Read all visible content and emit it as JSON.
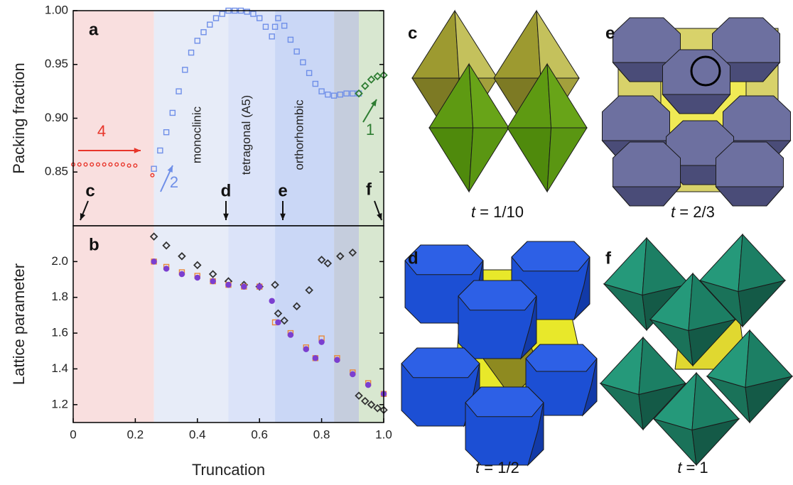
{
  "chart_data": [
    {
      "type": "scatter",
      "panel_label": "a",
      "ylabel": "Packing fraction",
      "xlim": [
        0,
        1
      ],
      "ylim": [
        0.8,
        1.0
      ],
      "yticks": [
        0.85,
        {
          "value": 0.9,
          "label": "0.90"
        },
        0.95,
        {
          "value": 1,
          "label": "1.00"
        }
      ],
      "regions": [
        {
          "from": 0,
          "to": 0.26,
          "color": "#f9dfdf"
        },
        {
          "from": 0.26,
          "to": 0.5,
          "color": "#e7ecf8"
        },
        {
          "from": 0.5,
          "to": 0.65,
          "color": "#dbe3f9"
        },
        {
          "from": 0.65,
          "to": 0.84,
          "color": "#cad7f6"
        },
        {
          "from": 0.84,
          "to": 0.92,
          "color": "#c5cddd"
        },
        {
          "from": 0.92,
          "to": 1,
          "color": "#d8e7d0"
        }
      ],
      "phase_labels": [
        "monoclinic",
        "tetragonal (A5)",
        "orthorhombic"
      ],
      "annotations": [
        {
          "text": "4",
          "color": "#e8352a"
        },
        {
          "text": "2",
          "color": "#6f8fe8"
        },
        {
          "text": "1",
          "color": "#2e7d32"
        },
        {
          "text": "c",
          "color": "#111111"
        },
        {
          "text": "d",
          "color": "#111111"
        },
        {
          "text": "e",
          "color": "#111111"
        },
        {
          "text": "f",
          "color": "#111111"
        }
      ],
      "series": [
        {
          "color": "#e8352a",
          "marker": "circle",
          "x": [
            0,
            0.02,
            0.04,
            0.06,
            0.08,
            0.1,
            0.12,
            0.14,
            0.16,
            0.18,
            0.2,
            0.255
          ],
          "values": [
            0.857,
            0.857,
            0.857,
            0.857,
            0.857,
            0.857,
            0.857,
            0.857,
            0.857,
            0.856,
            0.856,
            0.847
          ]
        },
        {
          "color": "#6f8fe8",
          "marker": "square",
          "x": [
            0.26,
            0.28,
            0.3,
            0.32,
            0.34,
            0.36,
            0.38,
            0.4,
            0.42,
            0.44,
            0.46,
            0.48,
            0.5,
            0.52,
            0.54,
            0.56,
            0.58,
            0.6,
            0.62,
            0.64,
            0.65,
            0.66,
            0.68,
            0.7,
            0.72,
            0.74,
            0.76,
            0.78,
            0.8,
            0.82,
            0.84,
            0.86,
            0.88,
            0.9,
            0.92
          ],
          "values": [
            0.853,
            0.87,
            0.887,
            0.905,
            0.925,
            0.945,
            0.961,
            0.972,
            0.98,
            0.987,
            0.993,
            0.997,
            1.0,
            1.0,
            1.0,
            0.999,
            0.997,
            0.993,
            0.985,
            0.976,
            0.985,
            0.993,
            0.986,
            0.973,
            0.962,
            0.952,
            0.942,
            0.932,
            0.925,
            0.922,
            0.921,
            0.922,
            0.923,
            0.923,
            0.923
          ]
        },
        {
          "color": "#2e7d32",
          "marker": "diamond",
          "x": [
            0.92,
            0.94,
            0.96,
            0.98,
            1.0
          ],
          "values": [
            0.923,
            0.93,
            0.936,
            0.939,
            0.94
          ]
        }
      ]
    },
    {
      "type": "scatter",
      "panel_label": "b",
      "ylabel": "Lattice parameter",
      "xlabel": "Truncation",
      "xlim": [
        0,
        1
      ],
      "ylim": [
        1.1,
        2.2
      ],
      "xticks": [
        0,
        0.2,
        0.4,
        0.6,
        0.8,
        {
          "value": 1,
          "label": "1.0"
        }
      ],
      "yticks": [
        1.2,
        1.4,
        1.6,
        1.8,
        {
          "value": 2,
          "label": "2.0"
        }
      ],
      "regions": [
        {
          "from": 0,
          "to": 0.26,
          "color": "#f9dfdf"
        },
        {
          "from": 0.26,
          "to": 0.5,
          "color": "#e7ecf8"
        },
        {
          "from": 0.5,
          "to": 0.65,
          "color": "#dbe3f9"
        },
        {
          "from": 0.65,
          "to": 0.84,
          "color": "#cad7f6"
        },
        {
          "from": 0.84,
          "to": 0.92,
          "color": "#c5cddd"
        },
        {
          "from": 0.92,
          "to": 1,
          "color": "#d8e7d0"
        }
      ],
      "series": [
        {
          "color": "#333333",
          "marker": "diamond",
          "x": [
            0.26,
            0.3,
            0.35,
            0.4,
            0.45,
            0.5,
            0.55,
            0.6,
            0.65,
            0.66,
            0.68,
            0.72,
            0.76,
            0.8,
            0.82,
            0.86,
            0.9,
            0.92,
            0.94,
            0.96,
            0.98,
            1.0
          ],
          "values": [
            2.14,
            2.09,
            2.03,
            1.98,
            1.93,
            1.89,
            1.87,
            1.86,
            1.87,
            1.71,
            1.67,
            1.75,
            1.84,
            2.01,
            1.99,
            2.03,
            2.05,
            1.25,
            1.22,
            1.2,
            1.18,
            1.17
          ]
        },
        {
          "color": "#e8883a",
          "marker": "square",
          "x": [
            0.26,
            0.3,
            0.35,
            0.4,
            0.45,
            0.5,
            0.55,
            0.6,
            0.65,
            0.7,
            0.75,
            0.78,
            0.8,
            0.85,
            0.9,
            0.95,
            1.0
          ],
          "values": [
            2.0,
            1.97,
            1.94,
            1.92,
            1.89,
            1.87,
            1.86,
            1.86,
            1.66,
            1.6,
            1.52,
            1.46,
            1.57,
            1.46,
            1.38,
            1.32,
            1.26
          ]
        },
        {
          "color": "#7b3fd0",
          "marker": "circle-filled",
          "x": [
            0.26,
            0.3,
            0.35,
            0.4,
            0.45,
            0.5,
            0.55,
            0.6,
            0.64,
            0.66,
            0.7,
            0.75,
            0.78,
            0.8,
            0.85,
            0.9,
            0.95,
            1.0
          ],
          "values": [
            2.0,
            1.96,
            1.93,
            1.91,
            1.89,
            1.87,
            1.86,
            1.86,
            1.78,
            1.66,
            1.59,
            1.51,
            1.46,
            1.55,
            1.45,
            1.37,
            1.31,
            1.26
          ]
        }
      ]
    }
  ],
  "images": [
    {
      "label": "c",
      "variable": "t",
      "caption": "= 1/10"
    },
    {
      "label": "e",
      "variable": "t",
      "caption": "= 2/3"
    },
    {
      "label": "d",
      "variable": "t",
      "caption": "= 1/2"
    },
    {
      "label": "f",
      "variable": "t",
      "caption": "= 1"
    }
  ]
}
